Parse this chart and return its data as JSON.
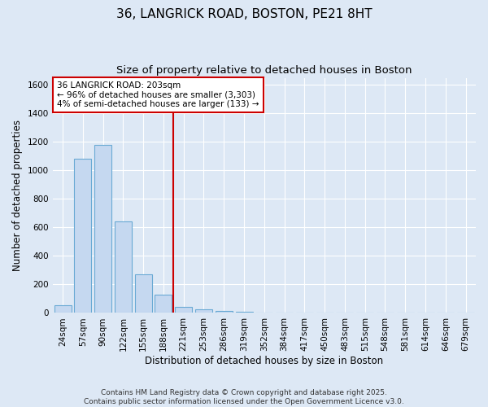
{
  "title_line1": "36, LANGRICK ROAD, BOSTON, PE21 8HT",
  "title_line2": "Size of property relative to detached houses in Boston",
  "xlabel": "Distribution of detached houses by size in Boston",
  "ylabel": "Number of detached properties",
  "categories": [
    "24sqm",
    "57sqm",
    "90sqm",
    "122sqm",
    "155sqm",
    "188sqm",
    "221sqm",
    "253sqm",
    "286sqm",
    "319sqm",
    "352sqm",
    "384sqm",
    "417sqm",
    "450sqm",
    "483sqm",
    "515sqm",
    "548sqm",
    "581sqm",
    "614sqm",
    "646sqm",
    "679sqm"
  ],
  "values": [
    55,
    1080,
    1180,
    640,
    270,
    130,
    45,
    25,
    15,
    10,
    0,
    0,
    0,
    0,
    0,
    0,
    0,
    0,
    0,
    0,
    0
  ],
  "bar_color": "#c5d8f0",
  "bar_edge_color": "#6aaad4",
  "vline_index": 5.5,
  "vline_color": "#cc0000",
  "ylim": [
    0,
    1650
  ],
  "yticks": [
    0,
    200,
    400,
    600,
    800,
    1000,
    1200,
    1400,
    1600
  ],
  "annotation_text": "36 LANGRICK ROAD: 203sqm\n← 96% of detached houses are smaller (3,303)\n4% of semi-detached houses are larger (133) →",
  "annotation_box_facecolor": "#ffffff",
  "annotation_box_edgecolor": "#cc0000",
  "background_color": "#dde8f5",
  "plot_bg_color": "#dde8f5",
  "grid_color": "#ffffff",
  "footer_text": "Contains HM Land Registry data © Crown copyright and database right 2025.\nContains public sector information licensed under the Open Government Licence v3.0.",
  "title_fontsize": 11,
  "subtitle_fontsize": 9.5,
  "ylabel_fontsize": 8.5,
  "xlabel_fontsize": 8.5,
  "tick_fontsize": 7.5,
  "annotation_fontsize": 7.5,
  "footer_fontsize": 6.5
}
